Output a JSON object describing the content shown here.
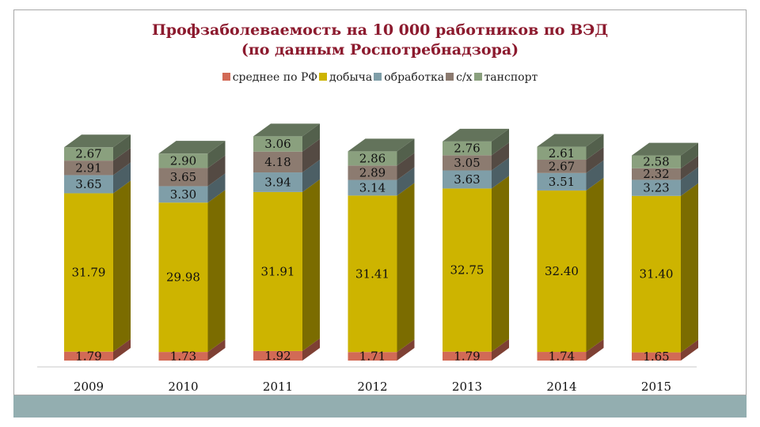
{
  "chart_data": {
    "type": "bar",
    "stacked": true,
    "title_line1": "Профзаболеваемость на 10 000 работников по ВЭД",
    "title_line2": "(по данным Роспотребнадзора)",
    "legend_position": "top",
    "categories": [
      "2009",
      "2010",
      "2011",
      "2012",
      "2013",
      "2014",
      "2015"
    ],
    "series": [
      {
        "name": "среднее по РФ",
        "color": "#d26a56",
        "values": [
          1.79,
          1.73,
          1.92,
          1.71,
          1.79,
          1.74,
          1.65
        ]
      },
      {
        "name": "добыча",
        "color": "#cdb400",
        "values": [
          31.79,
          29.98,
          31.91,
          31.41,
          32.75,
          32.4,
          31.4
        ]
      },
      {
        "name": "обработка",
        "color": "#7f9ea8",
        "values": [
          3.65,
          3.3,
          3.94,
          3.14,
          3.63,
          3.51,
          3.23
        ]
      },
      {
        "name": "с/х",
        "color": "#8c7b70",
        "values": [
          2.91,
          3.65,
          4.18,
          2.89,
          3.05,
          2.67,
          2.32
        ]
      },
      {
        "name": "транспорт",
        "legend_label": "танспорт",
        "color": "#8aa07e",
        "values": [
          2.67,
          2.9,
          3.06,
          2.86,
          2.76,
          2.61,
          2.58
        ]
      }
    ],
    "labels_text": [
      [
        "1.79",
        "1.73",
        "1.92",
        "1.71",
        "1.79",
        "1.74",
        "1.65"
      ],
      [
        "31.79",
        "29.98",
        "31.91",
        "31.41",
        "32.75",
        "32.40",
        "31.40"
      ],
      [
        "3.65",
        "3.30",
        "3.94",
        "3.14",
        "3.63",
        "3.51",
        "3.23"
      ],
      [
        "2.91",
        "3.65",
        "4.18",
        "2.89",
        "3.05",
        "2.67",
        "2.32"
      ],
      [
        "2.67",
        "2.90",
        "3.06",
        "2.86",
        "2.76",
        "2.61",
        "2.58"
      ]
    ],
    "grid": false,
    "style": "3d"
  }
}
